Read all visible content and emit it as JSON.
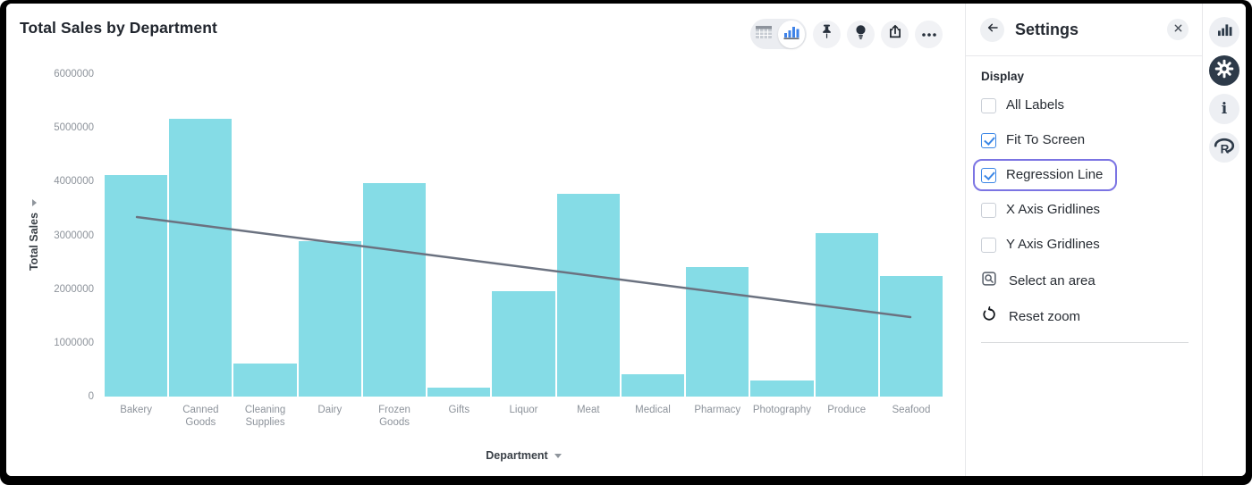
{
  "header": {
    "title": "Total Sales by Department"
  },
  "toolbar": {
    "view_toggle": {
      "options": [
        "table",
        "chart"
      ],
      "selected": "chart"
    },
    "icons": [
      "table-icon",
      "bar-chart-icon",
      "pin-icon",
      "lightbulb-icon",
      "share-icon",
      "more-icon"
    ]
  },
  "settings_panel": {
    "title": "Settings",
    "back_icon": "arrow-left-icon",
    "close_icon": "close-icon",
    "section": "Display",
    "checkboxes": [
      {
        "label": "All Labels",
        "checked": false,
        "focused": false
      },
      {
        "label": "Fit To Screen",
        "checked": true,
        "focused": false
      },
      {
        "label": "Regression Line",
        "checked": true,
        "focused": true
      },
      {
        "label": "X Axis Gridlines",
        "checked": false,
        "focused": false
      },
      {
        "label": "Y Axis Gridlines",
        "checked": false,
        "focused": false
      }
    ],
    "actions": [
      {
        "label": "Select an area",
        "icon": "select-area-icon"
      },
      {
        "label": "Reset zoom",
        "icon": "reset-zoom-icon"
      }
    ]
  },
  "right_rail": {
    "icons": [
      "bar-chart-icon",
      "gear-icon",
      "info-icon",
      "r-logo-icon"
    ],
    "active": "gear-icon"
  },
  "chart_data": {
    "type": "bar",
    "title": "Total Sales by Department",
    "xlabel": "Department",
    "ylabel": "Total Sales",
    "ylim": [
      0,
      6000000
    ],
    "y_ticks": [
      0,
      1000000,
      2000000,
      3000000,
      4000000,
      5000000,
      6000000
    ],
    "grid": false,
    "bar_color": "#85dce6",
    "categories": [
      "Bakery",
      "Canned Goods",
      "Cleaning Supplies",
      "Dairy",
      "Frozen Goods",
      "Gifts",
      "Liquor",
      "Meat",
      "Medical",
      "Pharmacy",
      "Photography",
      "Produce",
      "Seafood"
    ],
    "values": [
      4130000,
      5170000,
      610000,
      2900000,
      3970000,
      170000,
      1960000,
      3780000,
      420000,
      2410000,
      300000,
      3050000,
      2240000
    ],
    "regression_line": {
      "start": 3340000,
      "end": 1480000,
      "color": "#6b7280",
      "width": 2.5
    }
  }
}
